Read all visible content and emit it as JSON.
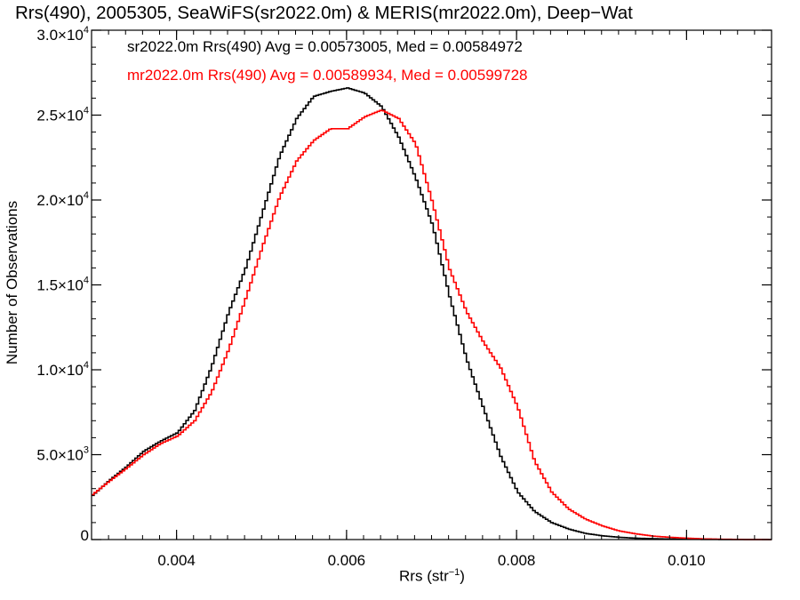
{
  "chart_data": {
    "type": "line",
    "title": "Rrs(490), 2005305, SeaWiFS(sr2022.0m) & MERIS(mr2022.0m), Deep−Wat",
    "xlabel": "Rrs (str",
    "xlabel_exponent": "−1",
    "xlabel_close": ")",
    "ylabel": "Number of Observations",
    "xlim": [
      0.003,
      0.011
    ],
    "ylim": [
      0,
      30000
    ],
    "x_ticks": [
      {
        "value": 0.004,
        "label": "0.004"
      },
      {
        "value": 0.006,
        "label": "0.006"
      },
      {
        "value": 0.008,
        "label": "0.008"
      },
      {
        "value": 0.01,
        "label": "0.010"
      }
    ],
    "y_ticks": [
      {
        "value": 0,
        "mant": "0",
        "exp": ""
      },
      {
        "value": 5000,
        "mant": "5.0×10",
        "exp": "3"
      },
      {
        "value": 10000,
        "mant": "1.0×10",
        "exp": "4"
      },
      {
        "value": 15000,
        "mant": "1.5×10",
        "exp": "4"
      },
      {
        "value": 20000,
        "mant": "2.0×10",
        "exp": "4"
      },
      {
        "value": 25000,
        "mant": "2.5×10",
        "exp": "4"
      },
      {
        "value": 30000,
        "mant": "3.0×10",
        "exp": "4"
      }
    ],
    "legend_entries": [
      {
        "text": "sr2022.0m Rrs(490) Avg = 0.00573005, Med = 0.00584972",
        "color": "#000000"
      },
      {
        "text": "mr2022.0m Rrs(490) Avg = 0.00589934, Med = 0.00599728",
        "color": "#ff0000"
      }
    ],
    "series": [
      {
        "color": "#000000",
        "x": [
          0.003,
          0.0032,
          0.0034,
          0.0036,
          0.0038,
          0.004,
          0.0042,
          0.0044,
          0.0046,
          0.0048,
          0.005,
          0.0052,
          0.0054,
          0.0056,
          0.0058,
          0.006,
          0.0062,
          0.0064,
          0.0066,
          0.0068,
          0.007,
          0.0072,
          0.0074,
          0.0076,
          0.0078,
          0.008,
          0.0082,
          0.0084,
          0.0086,
          0.0088,
          0.009,
          0.0092,
          0.0094,
          0.0096,
          0.0098,
          0.01,
          0.0102,
          0.0104,
          0.0106,
          0.0108,
          0.011
        ],
        "y": [
          2600,
          3500,
          4300,
          5200,
          5800,
          6300,
          7600,
          10200,
          13400,
          16000,
          19300,
          22600,
          24800,
          26100,
          26400,
          26600,
          26300,
          25500,
          23700,
          21300,
          18500,
          14300,
          10600,
          7700,
          4900,
          2800,
          1650,
          1000,
          620,
          360,
          220,
          130,
          80,
          50,
          30,
          20,
          10,
          5,
          0,
          0,
          0
        ]
      },
      {
        "color": "#ff0000",
        "x": [
          0.003,
          0.0032,
          0.0034,
          0.0036,
          0.0038,
          0.004,
          0.0042,
          0.0044,
          0.0046,
          0.0048,
          0.005,
          0.0052,
          0.0054,
          0.0056,
          0.0058,
          0.006,
          0.0062,
          0.0064,
          0.0066,
          0.0068,
          0.007,
          0.0072,
          0.0074,
          0.0076,
          0.0078,
          0.008,
          0.0082,
          0.0084,
          0.0086,
          0.0088,
          0.009,
          0.0092,
          0.0094,
          0.0096,
          0.0098,
          0.01,
          0.0102,
          0.0104,
          0.0106,
          0.0108,
          0.011
        ],
        "y": [
          2650,
          3450,
          4200,
          5000,
          5650,
          6100,
          7000,
          8700,
          11200,
          14200,
          17300,
          20200,
          22300,
          23500,
          24200,
          24200,
          24900,
          25300,
          24800,
          23300,
          19800,
          15900,
          13400,
          11600,
          10100,
          7800,
          4600,
          2800,
          1800,
          1200,
          800,
          500,
          330,
          200,
          130,
          80,
          40,
          20,
          8,
          3,
          0
        ]
      }
    ]
  }
}
